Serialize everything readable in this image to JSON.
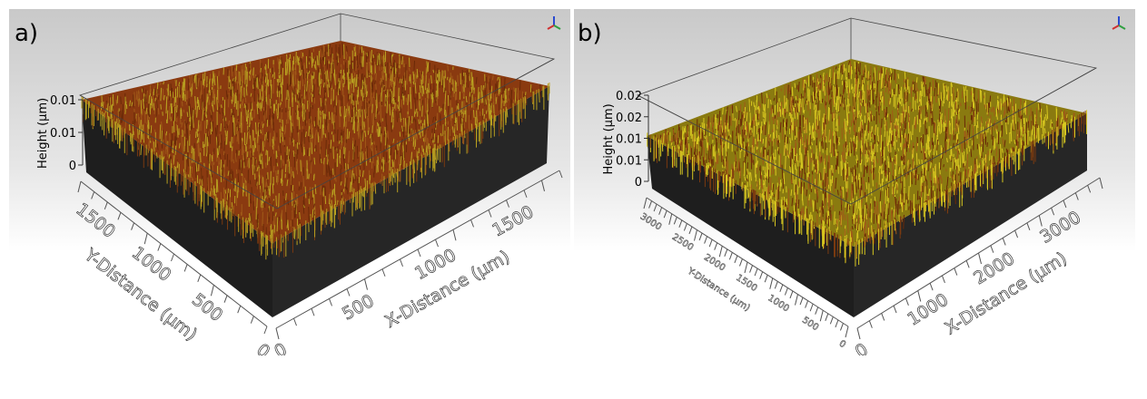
{
  "panels": [
    {
      "label": "a)",
      "z_axis": {
        "title": "Height (µm)",
        "ticks": [
          "0",
          "0.01",
          "0.01"
        ]
      },
      "y_axis": {
        "title": "Y-Distance (µm)",
        "ticks": [
          "0",
          "500",
          "1000",
          "1500"
        ]
      },
      "x_axis": {
        "title": "X-Distance (µm)",
        "ticks": [
          "0",
          "500",
          "1000",
          "1500"
        ]
      },
      "colors": {
        "surface_base": "#8a3a10",
        "surface_highlight": "#b8a020",
        "block": "#1e1e1e"
      }
    },
    {
      "label": "b)",
      "z_axis": {
        "title": "Height (µm)",
        "ticks": [
          "0",
          "0.01",
          "0.01",
          "0.02",
          "0.02"
        ]
      },
      "y_axis": {
        "title": "Y-Distance (µm)",
        "ticks": [
          "0",
          "500",
          "1000",
          "1500",
          "2000",
          "2500",
          "3000"
        ]
      },
      "x_axis": {
        "title": "X-Distance (µm)",
        "ticks": [
          "0",
          "1000",
          "2000",
          "3000"
        ]
      },
      "colors": {
        "surface_base": "#8a7a10",
        "surface_highlight": "#d8c820",
        "block": "#1e1e1e"
      }
    }
  ]
}
